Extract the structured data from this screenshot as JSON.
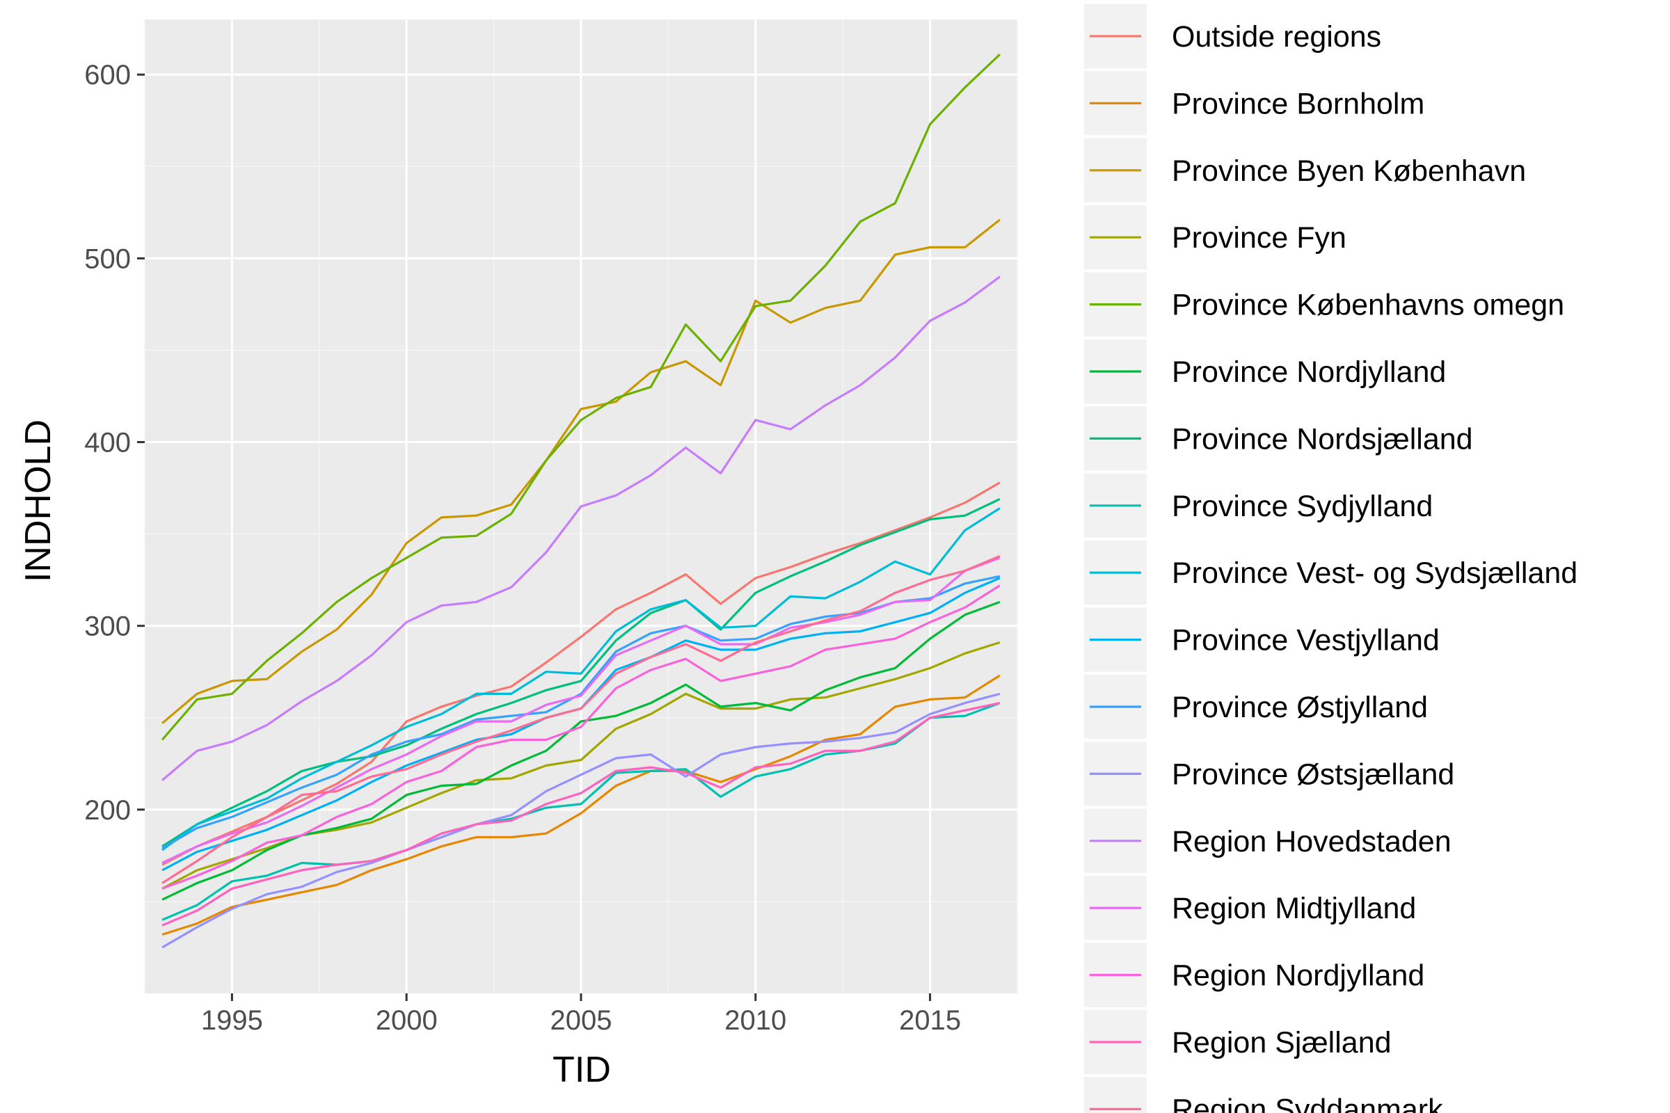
{
  "chart_data": {
    "type": "line",
    "xlabel": "TID",
    "ylabel": "INDHOLD",
    "xlim": [
      1992.5,
      2017.5
    ],
    "ylim": [
      100,
      630
    ],
    "x_ticks": [
      1995,
      2000,
      2005,
      2010,
      2015
    ],
    "x_tick_labels": [
      "1995",
      "2000",
      "2005",
      "2010",
      "2015"
    ],
    "y_ticks": [
      200,
      300,
      400,
      500,
      600
    ],
    "y_tick_labels": [
      "200",
      "300",
      "400",
      "500",
      "600"
    ],
    "grid": true,
    "legend_position": "right",
    "x": [
      1993,
      1994,
      1995,
      1996,
      1997,
      1998,
      1999,
      2000,
      2001,
      2002,
      2003,
      2004,
      2005,
      2006,
      2007,
      2008,
      2009,
      2010,
      2011,
      2012,
      2013,
      2014,
      2015,
      2016,
      2017
    ],
    "series": [
      {
        "name": "Outside regions",
        "color": "#F8766D",
        "values": [
          170,
          180,
          188,
          196,
          205,
          214,
          226,
          248,
          256,
          262,
          267,
          280,
          294,
          309,
          318,
          328,
          312,
          326,
          332,
          339,
          345,
          352,
          359,
          367,
          378
        ]
      },
      {
        "name": "Province Bornholm",
        "color": "#E58700",
        "values": [
          132,
          138,
          147,
          151,
          155,
          159,
          167,
          173,
          180,
          185,
          185,
          187,
          198,
          213,
          221,
          221,
          215,
          222,
          229,
          238,
          241,
          256,
          260,
          261,
          273
        ]
      },
      {
        "name": "Province Byen København",
        "color": "#C99800",
        "values": [
          247,
          263,
          270,
          271,
          286,
          298,
          317,
          345,
          359,
          360,
          366,
          390,
          418,
          422,
          438,
          444,
          431,
          477,
          465,
          473,
          477,
          502,
          506,
          506,
          521
        ]
      },
      {
        "name": "Province Fyn",
        "color": "#A3A500",
        "values": [
          157,
          167,
          173,
          179,
          186,
          189,
          193,
          201,
          209,
          216,
          217,
          224,
          227,
          244,
          252,
          263,
          255,
          255,
          260,
          261,
          266,
          271,
          277,
          285,
          291
        ]
      },
      {
        "name": "Province Københavns omegn",
        "color": "#6BB100",
        "values": [
          238,
          260,
          263,
          281,
          296,
          313,
          326,
          337,
          348,
          349,
          361,
          390,
          412,
          424,
          430,
          464,
          444,
          474,
          477,
          496,
          520,
          530,
          573,
          593,
          611
        ]
      },
      {
        "name": "Province Nordjylland",
        "color": "#00BA38",
        "values": [
          151,
          160,
          167,
          178,
          186,
          190,
          195,
          208,
          213,
          214,
          224,
          232,
          248,
          251,
          258,
          268,
          256,
          258,
          254,
          265,
          272,
          277,
          293,
          306,
          313
        ]
      },
      {
        "name": "Province Nordsjælland",
        "color": "#00BF7D",
        "values": [
          180,
          192,
          201,
          210,
          221,
          226,
          229,
          235,
          244,
          252,
          258,
          265,
          270,
          292,
          307,
          314,
          298,
          318,
          327,
          335,
          344,
          351,
          358,
          360,
          369
        ]
      },
      {
        "name": "Province Sydjylland",
        "color": "#00C0AF",
        "values": [
          140,
          148,
          161,
          164,
          171,
          170,
          172,
          178,
          185,
          192,
          195,
          201,
          203,
          220,
          221,
          222,
          207,
          218,
          222,
          230,
          232,
          236,
          250,
          251,
          258
        ]
      },
      {
        "name": "Province Vest- og Sydsjælland",
        "color": "#00BCD8",
        "values": [
          178,
          192,
          199,
          206,
          217,
          226,
          235,
          245,
          252,
          263,
          263,
          275,
          274,
          297,
          309,
          314,
          299,
          300,
          316,
          315,
          324,
          335,
          328,
          352,
          364
        ]
      },
      {
        "name": "Province Vestjylland",
        "color": "#00B0F6",
        "values": [
          167,
          177,
          183,
          189,
          197,
          205,
          215,
          224,
          231,
          238,
          241,
          250,
          255,
          276,
          283,
          292,
          287,
          287,
          293,
          296,
          297,
          302,
          307,
          318,
          326
        ]
      },
      {
        "name": "Province Østjylland",
        "color": "#35A2FF",
        "values": [
          179,
          190,
          196,
          204,
          212,
          219,
          230,
          237,
          241,
          249,
          251,
          253,
          263,
          286,
          296,
          300,
          292,
          293,
          301,
          305,
          307,
          313,
          315,
          323,
          327
        ]
      },
      {
        "name": "Province Østsjælland",
        "color": "#9590FF",
        "values": [
          125,
          136,
          146,
          154,
          158,
          166,
          171,
          178,
          185,
          192,
          197,
          210,
          219,
          228,
          230,
          218,
          230,
          234,
          236,
          237,
          239,
          242,
          252,
          258,
          263
        ]
      },
      {
        "name": "Region Hovedstaden",
        "color": "#C77CFF",
        "values": [
          216,
          232,
          237,
          246,
          259,
          270,
          284,
          302,
          311,
          313,
          321,
          340,
          365,
          371,
          382,
          397,
          383,
          412,
          407,
          420,
          431,
          446,
          466,
          476,
          490
        ]
      },
      {
        "name": "Region Midtjylland",
        "color": "#E76BF3",
        "values": [
          171,
          180,
          187,
          193,
          202,
          212,
          222,
          230,
          240,
          248,
          248,
          257,
          262,
          284,
          292,
          300,
          290,
          290,
          299,
          302,
          306,
          313,
          314,
          330,
          337
        ]
      },
      {
        "name": "Region Nordjylland",
        "color": "#FA62DB",
        "values": [
          157,
          164,
          172,
          182,
          186,
          196,
          203,
          215,
          221,
          234,
          238,
          238,
          245,
          266,
          276,
          282,
          270,
          274,
          278,
          287,
          290,
          293,
          302,
          310,
          322
        ]
      },
      {
        "name": "Region Sjælland",
        "color": "#FF62BC",
        "values": [
          137,
          145,
          157,
          162,
          167,
          170,
          172,
          178,
          187,
          192,
          194,
          203,
          209,
          221,
          223,
          220,
          212,
          223,
          225,
          232,
          232,
          237,
          250,
          254,
          258
        ]
      },
      {
        "name": "Region Syddanmark",
        "color": "#FF6C91",
        "values": [
          160,
          172,
          185,
          196,
          208,
          210,
          218,
          222,
          230,
          237,
          243,
          250,
          255,
          274,
          283,
          290,
          281,
          291,
          297,
          303,
          308,
          318,
          325,
          330,
          338
        ]
      }
    ]
  }
}
